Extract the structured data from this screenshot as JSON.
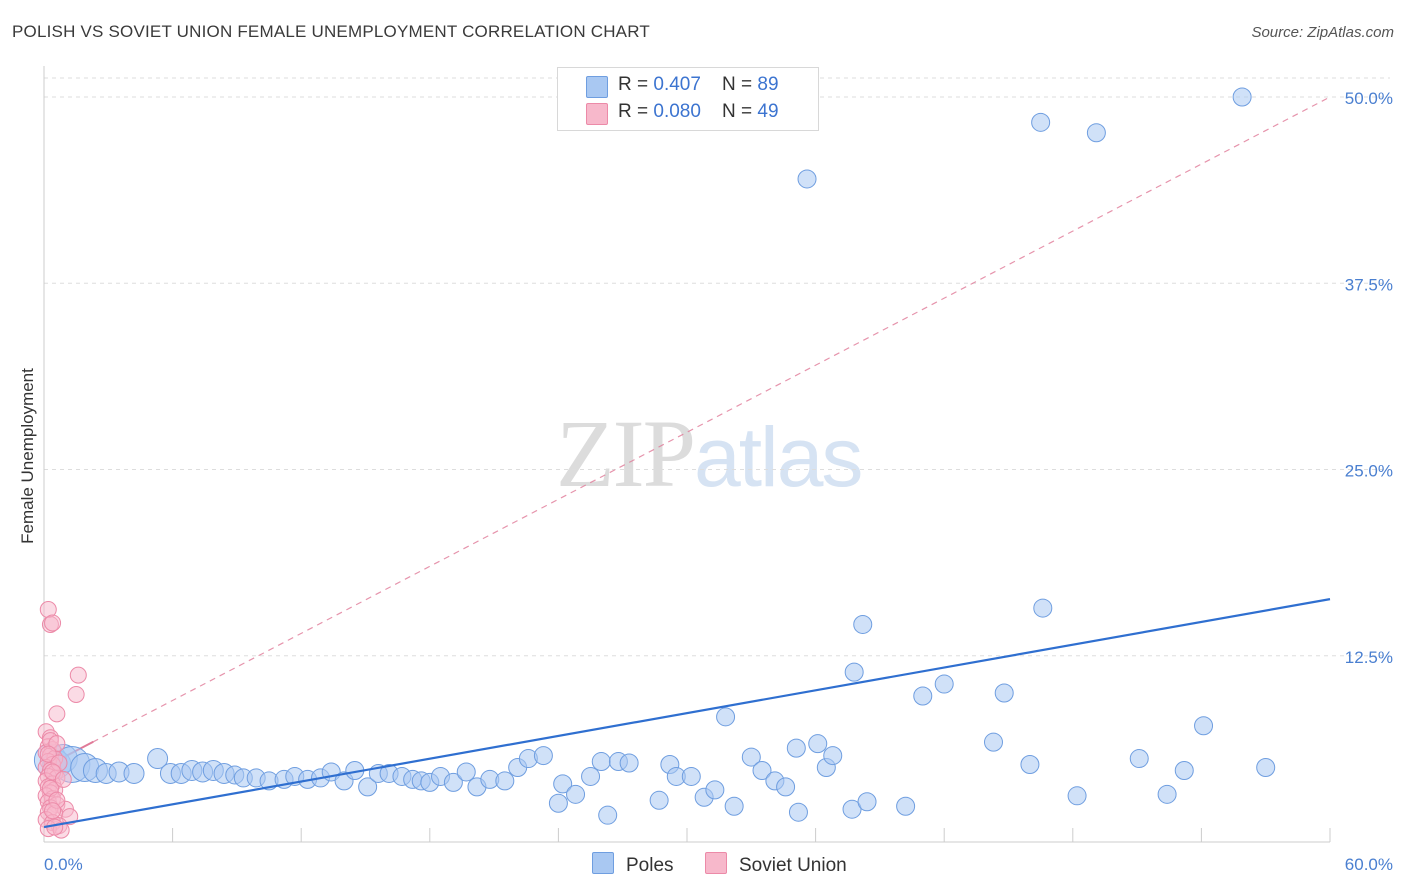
{
  "header": {
    "title": "POLISH VS SOVIET UNION FEMALE UNEMPLOYMENT CORRELATION CHART",
    "source": "Source: ZipAtlas.com"
  },
  "watermark": {
    "zip": "ZIP",
    "atlas": "atlas"
  },
  "legend": {
    "rows": [
      {
        "r_label": "R = ",
        "r_value": "0.407",
        "n_label": "N = ",
        "n_value": "89"
      },
      {
        "r_label": "R = ",
        "r_value": "0.080",
        "n_label": "N = ",
        "n_value": "49"
      }
    ],
    "series": [
      "Poles",
      "Soviet Union"
    ]
  },
  "colors": {
    "poles_fill": "#a9c8f2",
    "poles_stroke": "#6f9ee0",
    "poles_line": "#2f6fd0",
    "soviet_fill": "#f7b8cb",
    "soviet_stroke": "#ec8aa8",
    "soviet_line": "#e07a98",
    "grid": "#dddddd",
    "axis_text": "#4a7fd0"
  },
  "chart_data": {
    "type": "scatter",
    "title": "POLISH VS SOVIET UNION FEMALE UNEMPLOYMENT CORRELATION CHART",
    "xlabel": "",
    "ylabel": "Female Unemployment",
    "xlim": [
      0,
      60
    ],
    "ylim": [
      0,
      52
    ],
    "x_tick_labels": [
      "0.0%",
      "60.0%"
    ],
    "y_ticks": [
      12.5,
      25.0,
      37.5,
      50.0
    ],
    "y_tick_labels": [
      "12.5%",
      "25.0%",
      "37.5%",
      "50.0%"
    ],
    "grid": true,
    "legend_position": "top-center",
    "series": [
      {
        "name": "Poles",
        "trend": {
          "x": [
            0,
            60
          ],
          "y": [
            1.0,
            16.3
          ],
          "style": "solid"
        },
        "points": [
          [
            0.3,
            5.5,
            16
          ],
          [
            0.6,
            5.2,
            14
          ],
          [
            0.9,
            5.6,
            14
          ],
          [
            1.3,
            5.2,
            18
          ],
          [
            1.9,
            5.0,
            14
          ],
          [
            2.4,
            4.8,
            12
          ],
          [
            2.9,
            4.6,
            10
          ],
          [
            3.5,
            4.7,
            10
          ],
          [
            4.2,
            4.6,
            10
          ],
          [
            5.3,
            5.6,
            10
          ],
          [
            5.9,
            4.6,
            10
          ],
          [
            6.4,
            4.6,
            10
          ],
          [
            6.9,
            4.8,
            10
          ],
          [
            7.4,
            4.7,
            10
          ],
          [
            7.9,
            4.8,
            10
          ],
          [
            8.4,
            4.6,
            10
          ],
          [
            8.9,
            4.5,
            9
          ],
          [
            9.3,
            4.3,
            9
          ],
          [
            9.9,
            4.3,
            9
          ],
          [
            10.5,
            4.1,
            9
          ],
          [
            11.2,
            4.2,
            9
          ],
          [
            11.7,
            4.4,
            9
          ],
          [
            12.3,
            4.2,
            9
          ],
          [
            12.9,
            4.3,
            9
          ],
          [
            13.4,
            4.7,
            9
          ],
          [
            14.0,
            4.1,
            9
          ],
          [
            14.5,
            4.8,
            9
          ],
          [
            15.1,
            3.7,
            9
          ],
          [
            15.6,
            4.6,
            9
          ],
          [
            16.1,
            4.6,
            9
          ],
          [
            16.7,
            4.4,
            9
          ],
          [
            17.2,
            4.2,
            9
          ],
          [
            17.6,
            4.1,
            9
          ],
          [
            18.0,
            4.0,
            9
          ],
          [
            18.5,
            4.4,
            9
          ],
          [
            19.1,
            4.0,
            9
          ],
          [
            19.7,
            4.7,
            9
          ],
          [
            20.2,
            3.7,
            9
          ],
          [
            20.8,
            4.2,
            9
          ],
          [
            21.5,
            4.1,
            9
          ],
          [
            22.1,
            5.0,
            9
          ],
          [
            22.6,
            5.6,
            9
          ],
          [
            23.3,
            5.8,
            9
          ],
          [
            24.0,
            2.6,
            9
          ],
          [
            24.2,
            3.9,
            9
          ],
          [
            24.8,
            3.2,
            9
          ],
          [
            25.5,
            4.4,
            9
          ],
          [
            26.0,
            5.4,
            9
          ],
          [
            26.8,
            5.4,
            9
          ],
          [
            27.3,
            5.3,
            9
          ],
          [
            26.3,
            1.8,
            9
          ],
          [
            28.7,
            2.8,
            9
          ],
          [
            29.2,
            5.2,
            9
          ],
          [
            29.5,
            4.4,
            9
          ],
          [
            30.2,
            4.4,
            9
          ],
          [
            30.8,
            3.0,
            9
          ],
          [
            31.3,
            3.5,
            9
          ],
          [
            31.8,
            8.4,
            9
          ],
          [
            32.2,
            2.4,
            9
          ],
          [
            33.0,
            5.7,
            9
          ],
          [
            33.5,
            4.8,
            9
          ],
          [
            34.1,
            4.1,
            9
          ],
          [
            34.6,
            3.7,
            9
          ],
          [
            35.1,
            6.3,
            9
          ],
          [
            35.2,
            2.0,
            9
          ],
          [
            36.1,
            6.6,
            9
          ],
          [
            36.5,
            5.0,
            9
          ],
          [
            36.8,
            5.8,
            9
          ],
          [
            37.7,
            2.2,
            9
          ],
          [
            37.8,
            11.4,
            9
          ],
          [
            38.2,
            14.6,
            9
          ],
          [
            41.0,
            9.8,
            9
          ],
          [
            42.0,
            10.6,
            9
          ],
          [
            44.3,
            6.7,
            9
          ],
          [
            38.4,
            2.7,
            9
          ],
          [
            44.8,
            10.0,
            9
          ],
          [
            46.0,
            5.2,
            9
          ],
          [
            46.6,
            15.7,
            9
          ],
          [
            48.2,
            3.1,
            9
          ],
          [
            51.1,
            5.6,
            9
          ],
          [
            52.4,
            3.2,
            9
          ],
          [
            53.2,
            4.8,
            9
          ],
          [
            54.1,
            7.8,
            9
          ],
          [
            57.0,
            5.0,
            9
          ],
          [
            35.6,
            44.5,
            9
          ],
          [
            46.5,
            48.3,
            9
          ],
          [
            49.1,
            47.6,
            9
          ],
          [
            55.9,
            50.0,
            9
          ],
          [
            40.2,
            2.4,
            9
          ]
        ]
      },
      {
        "name": "Soviet Union",
        "trend": {
          "x": [
            0,
            60
          ],
          "y": [
            5.0,
            50.0
          ],
          "style": "dashed",
          "solid_segment_x": [
            0,
            2.3
          ]
        },
        "points": [
          [
            0.2,
            15.6,
            8
          ],
          [
            0.3,
            14.6,
            8
          ],
          [
            0.4,
            14.7,
            8
          ],
          [
            1.6,
            11.2,
            8
          ],
          [
            1.5,
            9.9,
            8
          ],
          [
            0.6,
            8.6,
            8
          ],
          [
            0.1,
            7.4,
            8
          ],
          [
            0.3,
            7.0,
            8
          ],
          [
            0.2,
            6.4,
            8
          ],
          [
            0.4,
            6.2,
            8
          ],
          [
            0.1,
            6.0,
            8
          ],
          [
            0.3,
            5.8,
            8
          ],
          [
            0.5,
            5.6,
            8
          ],
          [
            0.2,
            5.4,
            8
          ],
          [
            0.4,
            5.2,
            8
          ],
          [
            0.1,
            5.0,
            8
          ],
          [
            0.3,
            4.8,
            8
          ],
          [
            0.5,
            4.6,
            8
          ],
          [
            0.2,
            4.4,
            8
          ],
          [
            0.6,
            4.3,
            8
          ],
          [
            0.1,
            4.1,
            8
          ],
          [
            0.4,
            3.9,
            8
          ],
          [
            0.2,
            3.7,
            8
          ],
          [
            0.5,
            3.5,
            8
          ],
          [
            0.3,
            3.3,
            8
          ],
          [
            0.1,
            3.1,
            8
          ],
          [
            0.4,
            2.9,
            8
          ],
          [
            0.2,
            2.7,
            8
          ],
          [
            0.6,
            2.5,
            8
          ],
          [
            0.3,
            2.3,
            8
          ],
          [
            1.0,
            2.2,
            8
          ],
          [
            0.2,
            2.0,
            8
          ],
          [
            0.5,
            1.9,
            8
          ],
          [
            1.2,
            1.7,
            8
          ],
          [
            0.1,
            1.5,
            8
          ],
          [
            0.4,
            1.3,
            8
          ],
          [
            0.7,
            1.1,
            8
          ],
          [
            0.2,
            0.9,
            8
          ],
          [
            0.8,
            0.8,
            8
          ],
          [
            0.5,
            1.0,
            8
          ],
          [
            0.3,
            6.8,
            8
          ],
          [
            0.6,
            6.6,
            8
          ],
          [
            0.2,
            5.9,
            8
          ],
          [
            0.7,
            5.3,
            8
          ],
          [
            0.4,
            4.7,
            8
          ],
          [
            0.9,
            4.2,
            8
          ],
          [
            0.3,
            3.6,
            8
          ],
          [
            0.6,
            2.8,
            8
          ],
          [
            0.4,
            2.1,
            8
          ]
        ]
      }
    ]
  }
}
